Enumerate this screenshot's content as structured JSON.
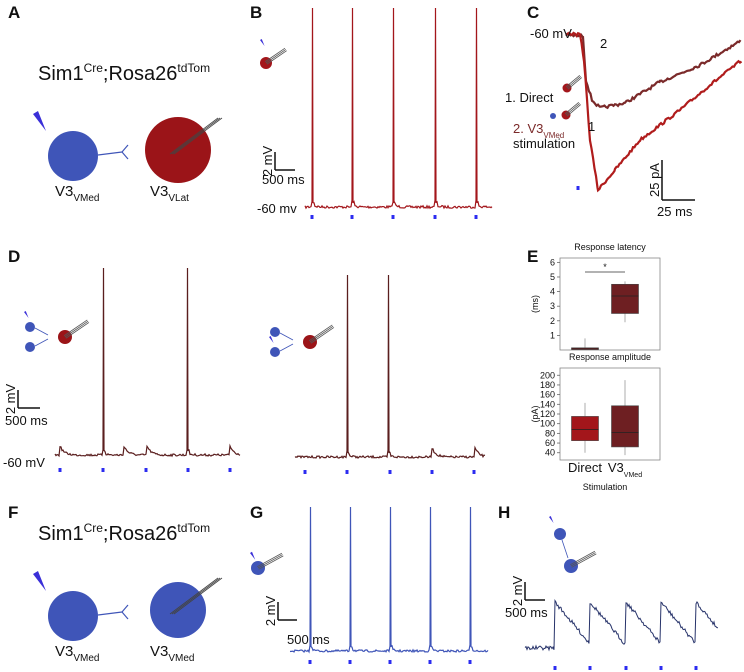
{
  "panels": {
    "A": {
      "letter": "A",
      "genotype": [
        "Sim1",
        "Cre",
        ";Rosa26",
        "tdTom"
      ],
      "cells": [
        [
          "V3",
          "VMed"
        ],
        [
          "V3",
          "VLat"
        ]
      ]
    },
    "B": {
      "letter": "B",
      "scale_y": "2 mV",
      "scale_x": "500 ms",
      "baseline": "-60 mv"
    },
    "C": {
      "letter": "C",
      "baseline": "-60 mV",
      "trace_labels": [
        "2",
        "1"
      ],
      "legend": [
        "1. Direct",
        "2. V3",
        "VMed",
        "stimulation"
      ],
      "scale_y": "25 pA",
      "scale_x": "25 ms"
    },
    "D": {
      "letter": "D",
      "scale_y": "2 mV",
      "scale_x": "500 ms",
      "baseline": "-60 mV"
    },
    "E": {
      "letter": "E"
    },
    "F": {
      "letter": "F",
      "genotype": [
        "Sim1",
        "Cre",
        ";Rosa26",
        "tdTom"
      ],
      "cells": [
        [
          "V3",
          "VMed"
        ],
        [
          "V3",
          "VMed"
        ]
      ]
    },
    "G": {
      "letter": "G",
      "scale_y": "2 mV",
      "scale_x": "500 ms"
    },
    "H": {
      "letter": "H",
      "scale_y": "2 mV",
      "scale_x": "500 ms"
    }
  },
  "chart_data": [
    {
      "type": "box",
      "title": "Response latency",
      "y_label": "(ms)",
      "ylim": [
        0,
        6.3
      ],
      "yticks": [
        1,
        2,
        3,
        4,
        5,
        6
      ],
      "significance": "*",
      "colors": [
        "#a3161b",
        "#6e1f22"
      ],
      "boxes": [
        {
          "min": 0,
          "q1": 0.03,
          "median": 0.08,
          "q3": 0.15,
          "max": 0.8
        },
        {
          "min": 1.9,
          "q1": 2.5,
          "median": 3.7,
          "q3": 4.5,
          "max": 4.7
        }
      ]
    },
    {
      "type": "box",
      "title": "Response amplitude",
      "y_label": "(pA)",
      "ylim": [
        25,
        215
      ],
      "yticks": [
        40,
        60,
        80,
        100,
        120,
        140,
        160,
        180,
        200
      ],
      "colors": [
        "#a3161b",
        "#6e1f22"
      ],
      "categories": [
        "Direct",
        "V3"
      ],
      "category_subscripts": [
        null,
        "VMed"
      ],
      "x_label": "Stimulation",
      "boxes": [
        {
          "min": 40,
          "q1": 65,
          "median": 88,
          "q3": 115,
          "max": 143
        },
        {
          "min": 35,
          "q1": 52,
          "median": 82,
          "q3": 137,
          "max": 190
        }
      ]
    }
  ]
}
